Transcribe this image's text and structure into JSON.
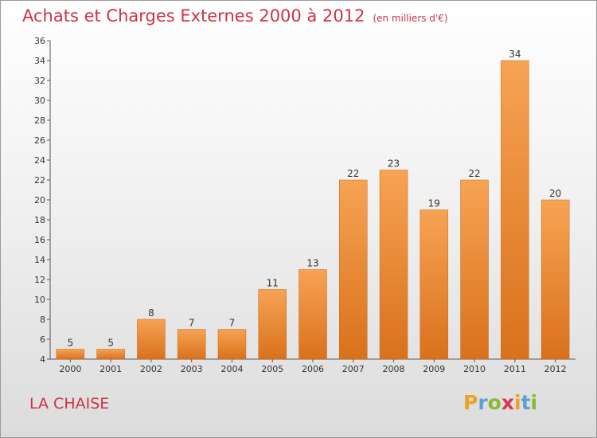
{
  "chart_data": {
    "type": "bar",
    "title": "Achats et Charges Externes 2000 à 2012",
    "unit_label": "(en milliers d'€)",
    "categories": [
      "2000",
      "2001",
      "2002",
      "2003",
      "2004",
      "2005",
      "2006",
      "2007",
      "2008",
      "2009",
      "2010",
      "2011",
      "2012"
    ],
    "values": [
      5,
      5,
      8,
      7,
      7,
      11,
      13,
      22,
      23,
      19,
      22,
      34,
      20
    ],
    "ylim": [
      4,
      36
    ],
    "yticks": [
      4,
      6,
      8,
      10,
      12,
      14,
      16,
      18,
      20,
      22,
      24,
      26,
      28,
      30,
      32,
      34,
      36
    ],
    "xlabel": "",
    "ylabel": "",
    "grid": false,
    "bar_color": "#f08a30"
  },
  "footer": {
    "city": "LA CHAISE",
    "brand": {
      "letters": [
        "P",
        "r",
        "o",
        "x",
        "i",
        "t",
        "i"
      ],
      "colors": [
        "#f0a020",
        "#5aa0d8",
        "#88bb33",
        "#dd3355",
        "#f0a020",
        "#5aa0d8",
        "#88bb33"
      ]
    }
  }
}
